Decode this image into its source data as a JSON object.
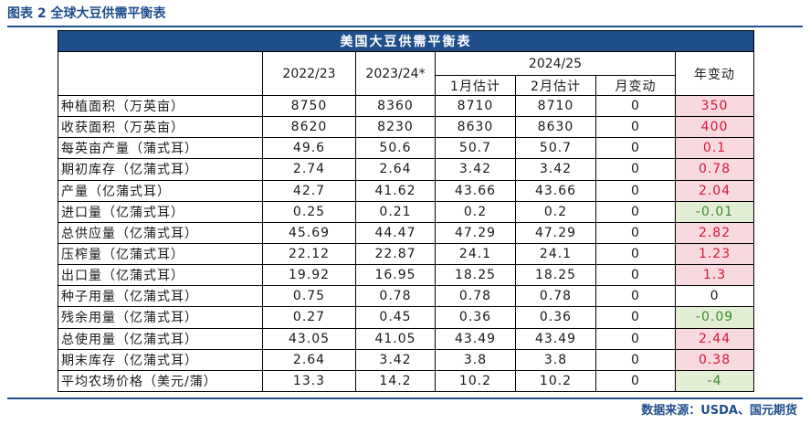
{
  "figure": {
    "caption": "图表 2  全球大豆供需平衡表",
    "source": "数据来源：USDA、国元期货"
  },
  "table": {
    "banner": "美国大豆供需平衡表",
    "headers": {
      "col_2022": "2022/23",
      "col_2023": "2023/24*",
      "group_2024": "2024/25",
      "sub_jan": "1月估计",
      "sub_feb": "2月估计",
      "sub_monthly": "月变动",
      "col_yearly": "年变动"
    },
    "rows": [
      {
        "label": "种植面积（万英亩）",
        "v2022": "8750",
        "v2023": "8360",
        "jan": "8710",
        "feb": "8710",
        "mchg": "0",
        "ychg": "350",
        "ysign": "pos"
      },
      {
        "label": "收获面积（万英亩）",
        "v2022": "8620",
        "v2023": "8230",
        "jan": "8630",
        "feb": "8630",
        "mchg": "0",
        "ychg": "400",
        "ysign": "pos"
      },
      {
        "label": "每英亩产量（蒲式耳）",
        "v2022": "49.6",
        "v2023": "50.6",
        "jan": "50.7",
        "feb": "50.7",
        "mchg": "0",
        "ychg": "0.1",
        "ysign": "pos"
      },
      {
        "label": "期初库存（亿蒲式耳）",
        "v2022": "2.74",
        "v2023": "2.64",
        "jan": "3.42",
        "feb": "3.42",
        "mchg": "0",
        "ychg": "0.78",
        "ysign": "pos"
      },
      {
        "label": "产量（亿蒲式耳）",
        "v2022": "42.7",
        "v2023": "41.62",
        "jan": "43.66",
        "feb": "43.66",
        "mchg": "0",
        "ychg": "2.04",
        "ysign": "pos"
      },
      {
        "label": "进口量（亿蒲式耳）",
        "v2022": "0.25",
        "v2023": "0.21",
        "jan": "0.2",
        "feb": "0.2",
        "mchg": "0",
        "ychg": "-0.01",
        "ysign": "neg"
      },
      {
        "label": "总供应量（亿蒲式耳）",
        "v2022": "45.69",
        "v2023": "44.47",
        "jan": "47.29",
        "feb": "47.29",
        "mchg": "0",
        "ychg": "2.82",
        "ysign": "pos"
      },
      {
        "label": "压榨量（亿蒲式耳）",
        "v2022": "22.12",
        "v2023": "22.87",
        "jan": "24.1",
        "feb": "24.1",
        "mchg": "0",
        "ychg": "1.23",
        "ysign": "pos"
      },
      {
        "label": "出口量（亿蒲式耳）",
        "v2022": "19.92",
        "v2023": "16.95",
        "jan": "18.25",
        "feb": "18.25",
        "mchg": "0",
        "ychg": "1.3",
        "ysign": "pos"
      },
      {
        "label": "种子用量（亿蒲式耳）",
        "v2022": "0.75",
        "v2023": "0.78",
        "jan": "0.78",
        "feb": "0.78",
        "mchg": "0",
        "ychg": "0",
        "ysign": "zero"
      },
      {
        "label": "残余用量（亿蒲式耳）",
        "v2022": "0.27",
        "v2023": "0.45",
        "jan": "0.36",
        "feb": "0.36",
        "mchg": "0",
        "ychg": "-0.09",
        "ysign": "neg"
      },
      {
        "label": "总使用量（亿蒲式耳）",
        "v2022": "43.05",
        "v2023": "41.05",
        "jan": "43.49",
        "feb": "43.49",
        "mchg": "0",
        "ychg": "2.44",
        "ysign": "pos"
      },
      {
        "label": "期末库存（亿蒲式耳）",
        "v2022": "2.64",
        "v2023": "3.42",
        "jan": "3.8",
        "feb": "3.8",
        "mchg": "0",
        "ychg": "0.38",
        "ysign": "pos"
      },
      {
        "label": "平均农场价格（美元/蒲）",
        "v2022": "13.3",
        "v2023": "14.2",
        "jan": "10.2",
        "feb": "10.2",
        "mchg": "0",
        "ychg": "-4",
        "ysign": "neg"
      }
    ]
  },
  "colors": {
    "accent": "#1f4e8c",
    "positive_bg": "#f8d9df",
    "positive_text": "#d4193b",
    "negative_bg": "#e2efd4",
    "negative_text": "#3d8a2a"
  }
}
